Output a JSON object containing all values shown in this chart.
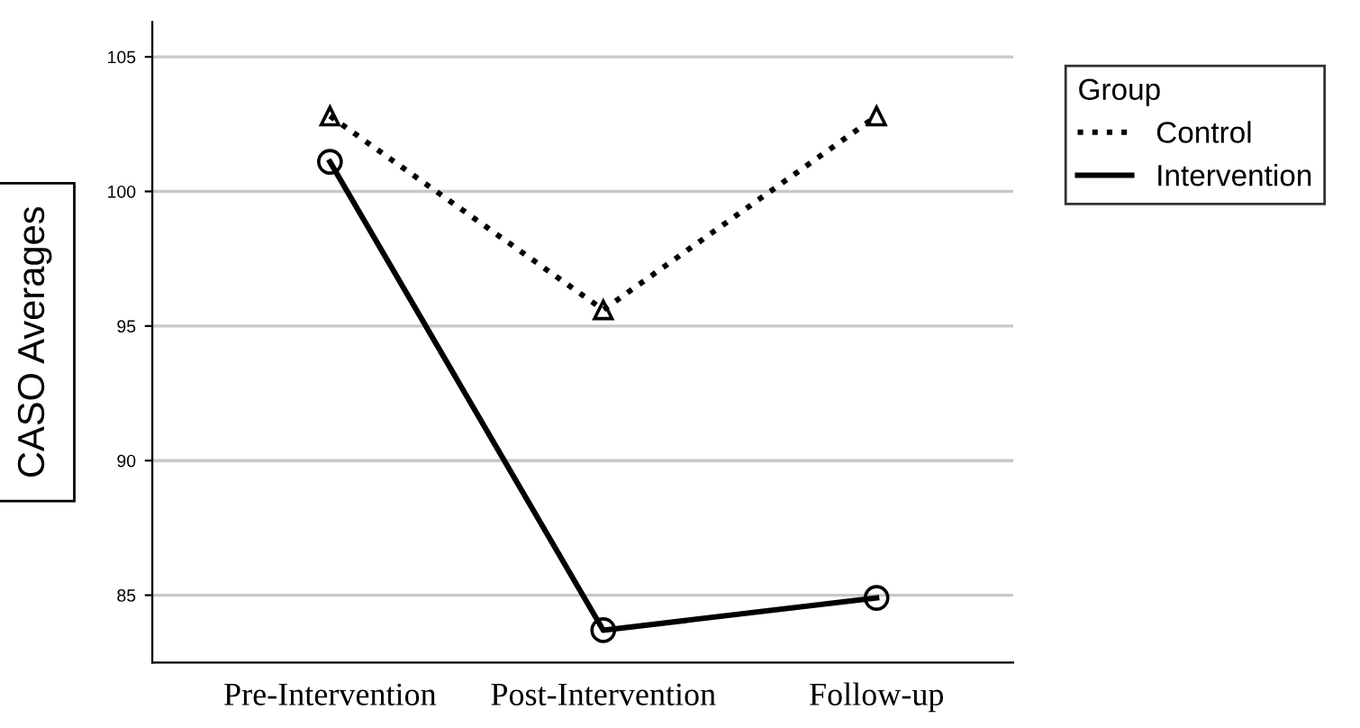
{
  "chart_data": {
    "type": "line",
    "ylabel": "CASO Averages",
    "legend_title": "Group",
    "categories": [
      "Pre-Intervention",
      "Post-Intervention",
      "Follow-up"
    ],
    "series": [
      {
        "name": "Control",
        "color": "#000000",
        "values": [
          102.8,
          95.6,
          102.8
        ],
        "line_style": "dotted",
        "marker": "triangle"
      },
      {
        "name": "Intervention",
        "color": "#000000",
        "values": [
          101.1,
          83.7,
          84.9
        ],
        "line_style": "solid",
        "marker": "circle"
      }
    ],
    "ylim": [
      82.5,
      106.3
    ],
    "yticks": [
      85,
      90,
      95,
      100,
      105
    ],
    "grid": "y",
    "legend": "top right"
  }
}
